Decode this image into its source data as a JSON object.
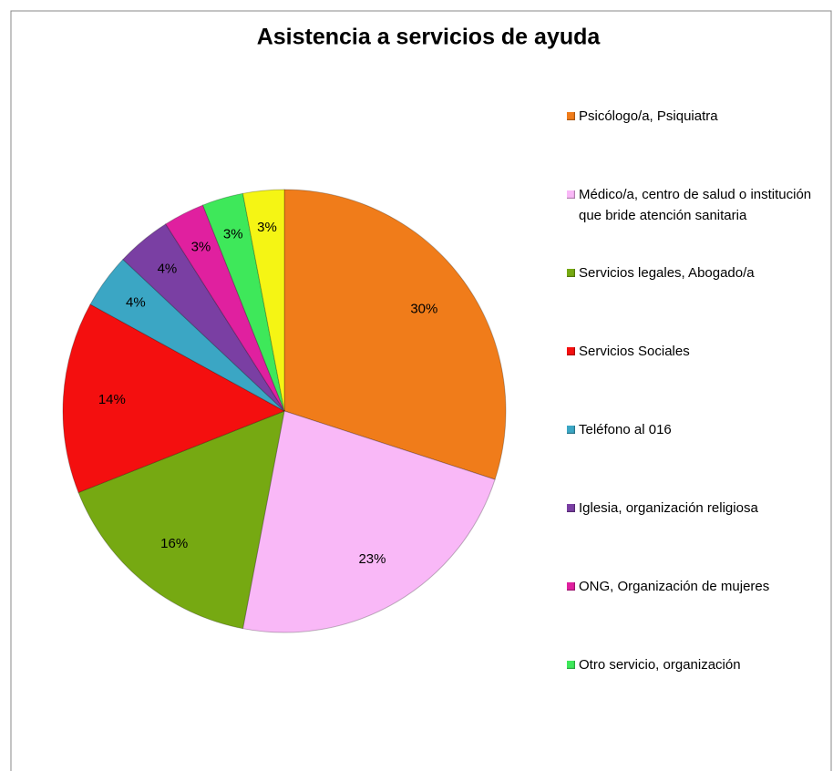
{
  "chart_data": {
    "type": "pie",
    "title": "Asistencia a servicios de ayuda",
    "categories": [
      "Psicólogo/a, Psiquiatra",
      "Médico/a, centro de salud o institución que bride atención sanitaria",
      "Servicios legales, Abogado/a",
      "Servicios Sociales",
      "Teléfono al 016",
      "Iglesia, organización religiosa",
      "ONG, Organización de mujeres",
      "Otro servicio, organización",
      null
    ],
    "values": [
      30,
      23,
      16,
      14,
      4,
      4,
      3,
      3,
      3
    ],
    "value_labels": [
      "30%",
      "23%",
      "16%",
      "14%",
      "4%",
      "4%",
      "3%",
      "3%",
      "3%"
    ],
    "colors": [
      "#f07c1a",
      "#f9b8f7",
      "#76a912",
      "#f40f0f",
      "#3ba6c4",
      "#7a3fa3",
      "#e0209f",
      "#3ee85a",
      "#f5f514"
    ],
    "legend": "right"
  }
}
